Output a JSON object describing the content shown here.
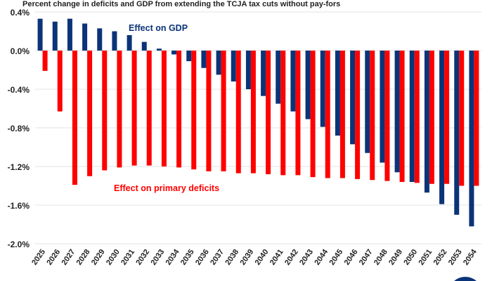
{
  "chart_data": {
    "type": "bar",
    "title": "Percent change in deficits and GDP from extending the TCJA tax cuts without pay-fors",
    "xlabel": "",
    "ylabel": "",
    "ylim": [
      -2.0,
      0.4
    ],
    "yticks": [
      "0.4%",
      "0.0%",
      "-0.4%",
      "-0.8%",
      "-1.2%",
      "-1.6%",
      "-2.0%"
    ],
    "ytick_values": [
      0.4,
      0.0,
      -0.4,
      -0.8,
      -1.2,
      -1.6,
      -2.0
    ],
    "grid": true,
    "categories": [
      "2025",
      "2026",
      "2027",
      "2028",
      "2029",
      "2030",
      "2031",
      "2032",
      "2033",
      "2034",
      "2035",
      "2036",
      "2037",
      "2038",
      "2039",
      "2040",
      "2041",
      "2042",
      "2043",
      "2044",
      "2045",
      "2046",
      "2047",
      "2048",
      "2049",
      "2050",
      "2051",
      "2052",
      "2053",
      "2054"
    ],
    "series": [
      {
        "name": "Effect on GDP",
        "color": "#0b3478",
        "values": [
          0.33,
          0.3,
          0.33,
          0.28,
          0.23,
          0.2,
          0.16,
          0.09,
          0.02,
          -0.04,
          -0.11,
          -0.18,
          -0.25,
          -0.32,
          -0.4,
          -0.47,
          -0.55,
          -0.63,
          -0.71,
          -0.79,
          -0.88,
          -0.97,
          -1.06,
          -1.16,
          -1.26,
          -1.36,
          -1.47,
          -1.59,
          -1.7,
          -1.82
        ]
      },
      {
        "name": "Effect on primary deficits",
        "color": "#ff0000",
        "values": [
          -0.21,
          -0.63,
          -1.39,
          -1.3,
          -1.24,
          -1.21,
          -1.19,
          -1.19,
          -1.2,
          -1.21,
          -1.23,
          -1.25,
          -1.25,
          -1.27,
          -1.27,
          -1.28,
          -1.29,
          -1.29,
          -1.31,
          -1.32,
          -1.32,
          -1.33,
          -1.34,
          -1.35,
          -1.36,
          -1.37,
          -1.38,
          -1.38,
          -1.4,
          -1.4
        ]
      }
    ],
    "legend": "inline labels"
  }
}
